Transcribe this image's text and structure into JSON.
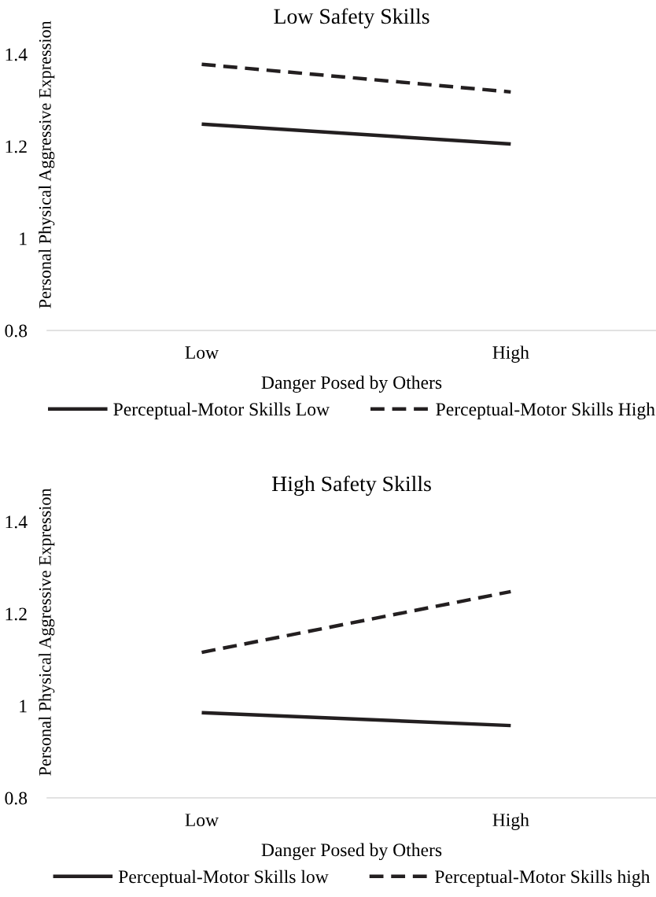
{
  "chart_data": [
    {
      "type": "line",
      "title": "Low Safety Skills",
      "xlabel": "Danger Posed by Others",
      "ylabel": "Personal Physical Aggressive Expression",
      "categories": [
        "Low",
        "High"
      ],
      "ylim": [
        0.8,
        1.4
      ],
      "yticks": [
        0.8,
        1,
        1.2,
        1.4
      ],
      "grid": false,
      "legend": "bottom",
      "marker": "none",
      "series": [
        {
          "name": "Perceptual-Motor Skills Low",
          "color": "#231f20",
          "line_style": "solid",
          "values": [
            1.248,
            1.205
          ]
        },
        {
          "name": "Perceptual-Motor Skills High",
          "color": "#231f20",
          "line_style": "dashed",
          "values": [
            1.378,
            1.318
          ]
        }
      ]
    },
    {
      "type": "line",
      "title": "High Safety Skills",
      "xlabel": "Danger Posed by Others",
      "ylabel": "Personal Physical Aggressive Expression",
      "categories": [
        "Low",
        "High"
      ],
      "ylim": [
        0.8,
        1.4
      ],
      "yticks": [
        0.8,
        1,
        1.2,
        1.4
      ],
      "grid": false,
      "legend": "bottom",
      "marker": "none",
      "series": [
        {
          "name": "Perceptual-Motor Skills low",
          "color": "#231f20",
          "line_style": "solid",
          "values": [
            0.985,
            0.957
          ]
        },
        {
          "name": "Perceptual-Motor Skills high",
          "color": "#231f20",
          "line_style": "dashed",
          "values": [
            1.116,
            1.248
          ]
        }
      ]
    }
  ]
}
